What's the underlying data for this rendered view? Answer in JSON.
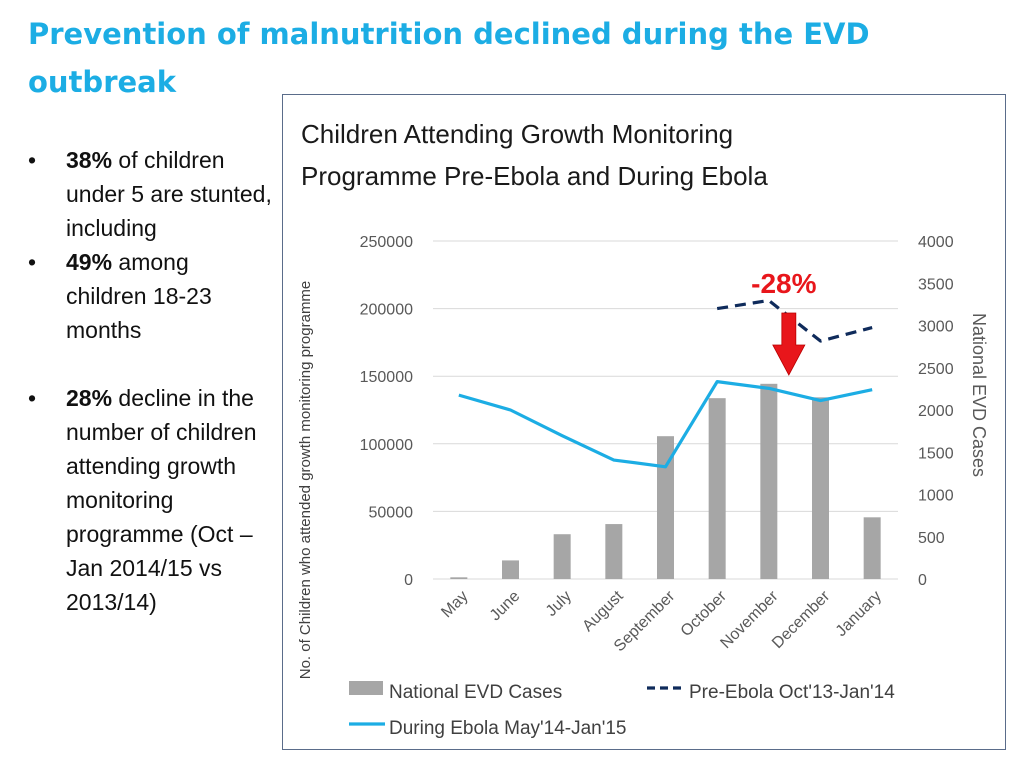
{
  "slide": {
    "title": "Prevention of malnutrition declined during the EVD outbreak"
  },
  "bullets": [
    {
      "bold": "38%",
      "text": " of children under 5 are stunted, including"
    },
    {
      "bold": "49%",
      "text": " among children 18-23 months"
    },
    {
      "bold": "28%",
      "text": " decline in the number of children attending growth monitoring programme (Oct – Jan 2014/15 vs 2013/14)"
    }
  ],
  "bullet_symbol": "•",
  "colors": {
    "title": "#1CADE4",
    "bar": "#A6A6A6",
    "during_line": "#1CADE4",
    "pre_line": "#0F2B5B",
    "arrow": "#E8161B",
    "annotation": "#E8161B",
    "grid": "#D9D9D9"
  },
  "chart_data": {
    "type": "bar",
    "title": "Children Attending Growth Monitoring Programme Pre-Ebola and During Ebola",
    "title_lines": [
      "Children Attending Growth Monitoring",
      "Programme Pre-Ebola and During Ebola"
    ],
    "categories": [
      "May",
      "June",
      "July",
      "August",
      "September",
      "October",
      "November",
      "December",
      "January"
    ],
    "ylabel": "No. of Children who attended growth monitoring programme",
    "y2label": "National EVD Cases",
    "ylim": [
      0,
      250000
    ],
    "y_ticks": [
      0,
      50000,
      100000,
      150000,
      200000,
      250000
    ],
    "y2lim": [
      0,
      4000
    ],
    "y2_ticks": [
      0,
      500,
      1000,
      1500,
      2000,
      2500,
      3000,
      3500,
      4000
    ],
    "grid": true,
    "series": [
      {
        "name": "National EVD Cases",
        "type": "bar",
        "axis": "right",
        "values": [
          20,
          220,
          530,
          650,
          1690,
          2140,
          2310,
          2150,
          730
        ]
      },
      {
        "name": "Pre-Ebola Oct'13-Jan'14",
        "type": "line",
        "style": "dashed",
        "axis": "left",
        "values": [
          null,
          null,
          null,
          null,
          null,
          200000,
          206000,
          176000,
          186000
        ]
      },
      {
        "name": "During Ebola May'14-Jan'15",
        "type": "line",
        "style": "solid",
        "axis": "left",
        "values": [
          136000,
          125000,
          106000,
          88000,
          83000,
          146000,
          141000,
          132000,
          140000
        ]
      }
    ],
    "annotation": {
      "text": "-28%",
      "category": "November"
    },
    "legend_position": "bottom"
  }
}
